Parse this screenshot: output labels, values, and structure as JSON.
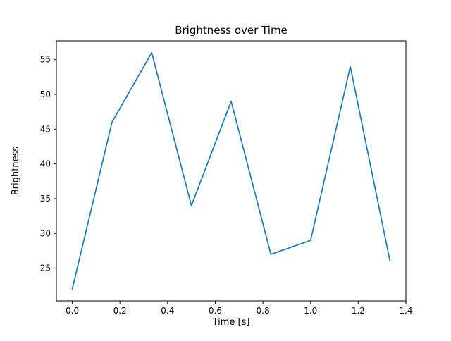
{
  "chart_data": {
    "type": "line",
    "title": "Brightness over Time",
    "xlabel": "Time [s]",
    "ylabel": "Brightness",
    "x": [
      0.0,
      0.1667,
      0.3333,
      0.5,
      0.6667,
      0.8333,
      1.0,
      1.1667,
      1.3333
    ],
    "values": [
      22,
      46,
      56,
      34,
      49,
      27,
      29,
      54,
      26
    ],
    "xlim": [
      -0.0667,
      1.4
    ],
    "ylim": [
      20.3,
      57.7
    ],
    "xticks": [
      0.0,
      0.2,
      0.4,
      0.6,
      0.8,
      1.0,
      1.2,
      1.4
    ],
    "xtick_labels": [
      "0.0",
      "0.2",
      "0.4",
      "0.6",
      "0.8",
      "1.0",
      "1.2",
      "1.4"
    ],
    "yticks": [
      25,
      30,
      35,
      40,
      45,
      50,
      55
    ],
    "ytick_labels": [
      "25",
      "30",
      "35",
      "40",
      "45",
      "50",
      "55"
    ],
    "line_color": "#1f77b4",
    "axis_color": "#000000",
    "grid": "off",
    "legend": "none"
  }
}
